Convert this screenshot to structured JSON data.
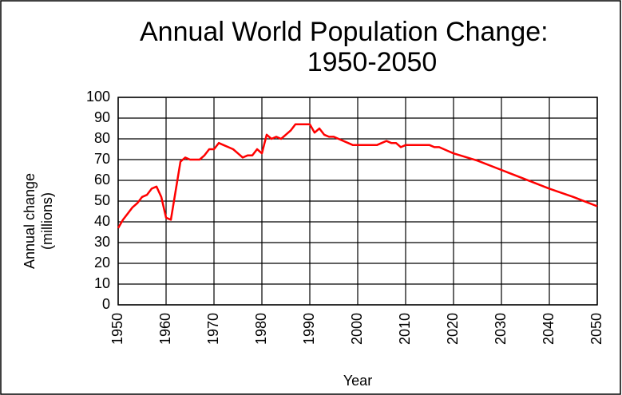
{
  "chart_data": {
    "type": "line",
    "title": [
      "Annual World Population Change:",
      "1950-2050"
    ],
    "ylabel": [
      "Annual change",
      "(millions)"
    ],
    "xlabel": "Year",
    "x": [
      1950,
      1951,
      1952,
      1953,
      1954,
      1955,
      1956,
      1957,
      1958,
      1959,
      1960,
      1961,
      1962,
      1963,
      1964,
      1965,
      1966,
      1967,
      1968,
      1969,
      1970,
      1971,
      1972,
      1973,
      1974,
      1975,
      1976,
      1977,
      1978,
      1979,
      1980,
      1981,
      1982,
      1983,
      1984,
      1985,
      1986,
      1987,
      1988,
      1989,
      1990,
      1991,
      1992,
      1993,
      1994,
      1995,
      1996,
      1997,
      1998,
      1999,
      2000,
      2001,
      2002,
      2003,
      2004,
      2005,
      2006,
      2007,
      2008,
      2009,
      2010,
      2011,
      2012,
      2013,
      2014,
      2015,
      2016,
      2017,
      2018,
      2019,
      2020,
      2025,
      2030,
      2035,
      2040,
      2045,
      2050
    ],
    "series": [
      {
        "name": "Annual change",
        "color": "#ff0000",
        "values": [
          37,
          41,
          44,
          47,
          49,
          52,
          53,
          56,
          57,
          52,
          42,
          41,
          55,
          69,
          71,
          70,
          70,
          70,
          72,
          75,
          75,
          78,
          77,
          76,
          75,
          73,
          71,
          72,
          72,
          75,
          73,
          82,
          80,
          81,
          80,
          82,
          84,
          87,
          87,
          87,
          87,
          83,
          85,
          82,
          81,
          81,
          80,
          79,
          78,
          77,
          77,
          77,
          77,
          77,
          77,
          78,
          79,
          78,
          78,
          76,
          77,
          77,
          77,
          77,
          77,
          77,
          76,
          76,
          75,
          74,
          73,
          69.5,
          65,
          60.5,
          56,
          52,
          47.5
        ]
      }
    ],
    "xlim": [
      1950,
      2050
    ],
    "xticks": [
      1950,
      1960,
      1970,
      1980,
      1990,
      2000,
      2010,
      2020,
      2030,
      2040,
      2050
    ],
    "ylim": [
      0,
      100
    ],
    "yticks": [
      0,
      10,
      20,
      30,
      40,
      50,
      60,
      70,
      80,
      90,
      100
    ],
    "grid": true
  }
}
